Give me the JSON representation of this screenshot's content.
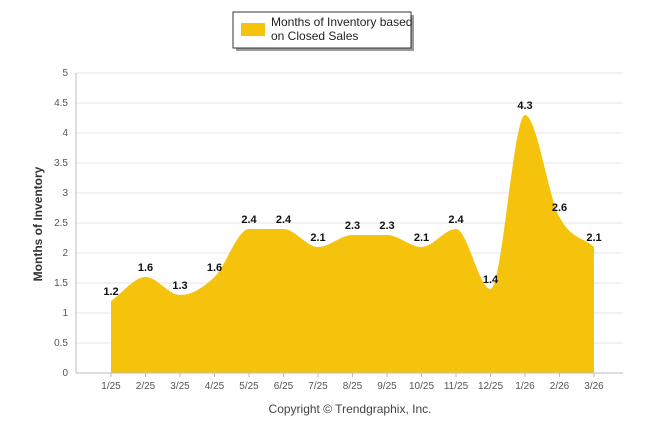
{
  "chart_data": {
    "type": "area",
    "categories": [
      "1/25",
      "2/25",
      "3/25",
      "4/25",
      "5/25",
      "6/25",
      "7/25",
      "8/25",
      "9/25",
      "10/25",
      "11/25",
      "12/25",
      "1/26",
      "2/26",
      "3/26"
    ],
    "series": [
      {
        "name": "Months of Inventory based on Closed Sales",
        "values": [
          1.2,
          1.6,
          1.3,
          1.6,
          2.4,
          2.4,
          2.1,
          2.3,
          2.3,
          2.1,
          2.4,
          1.4,
          4.3,
          2.6,
          2.1
        ],
        "labels": [
          "1.2",
          "1.6",
          "1.3",
          "1.6",
          "2.4",
          "2.4",
          "2.1",
          "2.3",
          "2.3",
          "2.1",
          "2.4",
          "1.4",
          "4.3",
          "2.6",
          "2.1"
        ]
      }
    ],
    "ylabel": "Months of Inventory",
    "xlabel": "",
    "ylim": [
      0,
      5
    ],
    "yticks": [
      "0",
      "0.5",
      "1",
      "1.5",
      "2",
      "2.5",
      "3",
      "3.5",
      "4",
      "4.5",
      "5"
    ],
    "grid": true,
    "legend_position": "top-center"
  },
  "legend": {
    "line1": "Months of Inventory based",
    "line2": "on Closed Sales"
  },
  "footer": {
    "copyright": "Copyright © Trendgraphix, Inc."
  },
  "colors": {
    "area_fill": "#F5C30C",
    "grid": "#E6E6E6",
    "axis": "#BBBBBB"
  }
}
